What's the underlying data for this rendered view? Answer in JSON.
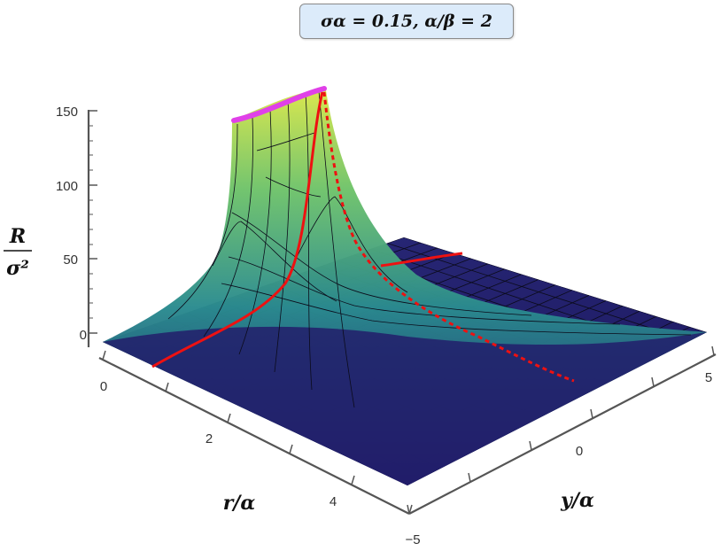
{
  "chart_data": {
    "type": "surface3d",
    "title": "σα = 0.15,   α/β = 2",
    "xlabel": "r/α",
    "ylabel": "y/α",
    "zlabel_num": "R",
    "zlabel_den": "σ²",
    "r_ticks": [
      "0",
      "2",
      "4"
    ],
    "y_ticks": [
      "5",
      "0",
      "−5"
    ],
    "z_ticks": [
      "0",
      "50",
      "100",
      "150"
    ],
    "xlim": [
      0,
      5
    ],
    "ylim": [
      -5,
      5
    ],
    "zlim": [
      0,
      150
    ],
    "colors": {
      "surface_low": "#1f1a66",
      "surface_mid": "#2a8b8f",
      "surface_high": "#d7e64a",
      "mesh": "#0b0b1a",
      "curve": "#ee1111",
      "cap": "#e040e8",
      "axes": "#555555"
    }
  }
}
